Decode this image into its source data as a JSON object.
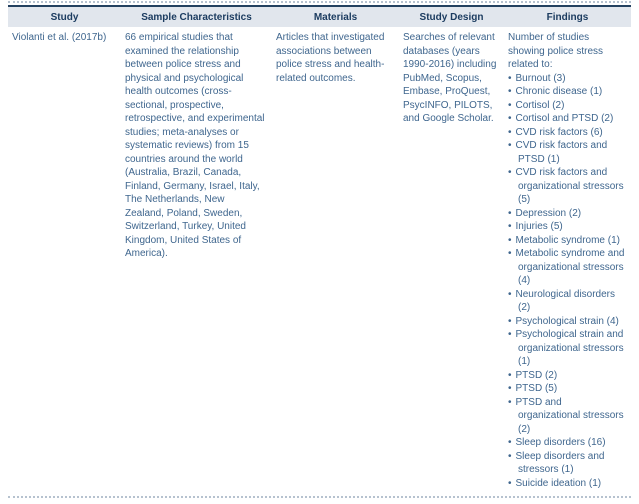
{
  "table": {
    "columns": [
      "Study",
      "Sample Characteristics",
      "Materials",
      "Study Design",
      "Findings"
    ],
    "row": {
      "study": "Violanti et al. (2017b)",
      "sample_characteristics": "66 empirical studies that examined the relationship between police stress and physical and psychological health outcomes (cross-sectional, prospective, retrospective, and experimental studies; meta-analyses or systematic reviews) from 15 countries around the world (Australia, Brazil, Canada, Finland, Germany, Israel, Italy, The Netherlands, New Zealand, Poland, Sweden, Switzerland, Turkey, United Kingdom, United States of America).",
      "materials": "Articles that investigated associations between police stress and health-related outcomes.",
      "study_design": "Searches of relevant databases (years 1990-2016) including PubMed, Scopus, Embase, ProQuest, PsycINFO, PILOTS, and Google Scholar.",
      "findings_intro": "Number of studies showing police stress related to:",
      "findings_items": [
        "Burnout (3)",
        "Chronic disease (1)",
        "Cortisol (2)",
        "Cortisol and PTSD (2)",
        "CVD risk factors (6)",
        "CVD risk factors and PTSD (1)",
        "CVD risk factors and organizational stressors (5)",
        "Depression (2)",
        "Injuries (5)",
        "Metabolic syndrome (1)",
        "Metabolic syndrome and organizational stressors (4)",
        "Neurological disorders (2)",
        "Psychological strain (4)",
        "Psychological strain and organizational stressors (1)",
        "PTSD (2)",
        "PTSD (5)",
        "PTSD and organizational stressors (2)",
        "Sleep disorders (16)",
        "Sleep disorders and stressors (1)",
        "Suicide ideation (1)"
      ]
    }
  },
  "icons": {
    "bullet_glyph": "•"
  },
  "colors": {
    "header_bg": "#e1e6ed",
    "header_text": "#1c3c60",
    "body_text": "#3f668e",
    "rule_dark": "#23405f",
    "rule_dotted": "#b6c2cf"
  }
}
